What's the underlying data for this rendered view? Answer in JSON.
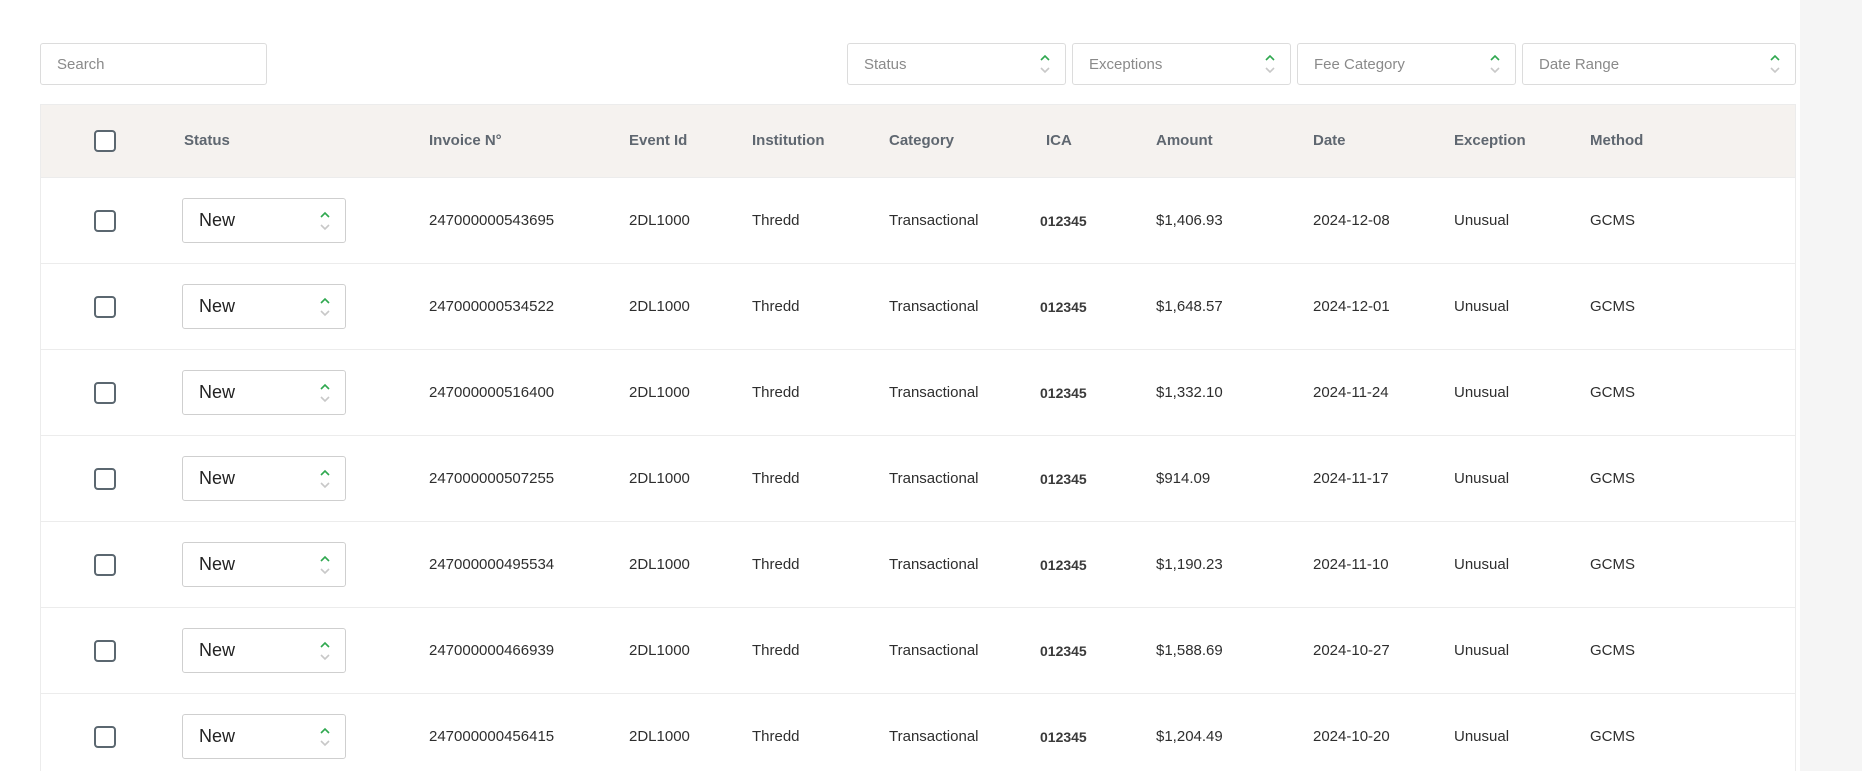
{
  "search": {
    "placeholder": "Search",
    "value": ""
  },
  "filters": [
    {
      "name": "status-filter",
      "label": "Status"
    },
    {
      "name": "exceptions-filter",
      "label": "Exceptions"
    },
    {
      "name": "fee-category-filter",
      "label": "Fee Category"
    },
    {
      "name": "date-range-filter",
      "label": "Date Range"
    }
  ],
  "table": {
    "headers": {
      "status": "Status",
      "invoice": "Invoice N°",
      "event_id": "Event Id",
      "institution": "Institution",
      "category": "Category",
      "ica": "ICA",
      "amount": "Amount",
      "date": "Date",
      "exception": "Exception",
      "method": "Method"
    },
    "rows": [
      {
        "status": "New",
        "invoice": "247000000543695",
        "event_id": "2DL1000",
        "institution": "Thredd",
        "category": "Transactional",
        "ica": "012345",
        "amount": "$1,406.93",
        "date": "2024-12-08",
        "exception": "Unusual",
        "method": "GCMS"
      },
      {
        "status": "New",
        "invoice": "247000000534522",
        "event_id": "2DL1000",
        "institution": "Thredd",
        "category": "Transactional",
        "ica": "012345",
        "amount": "$1,648.57",
        "date": "2024-12-01",
        "exception": "Unusual",
        "method": "GCMS"
      },
      {
        "status": "New",
        "invoice": "247000000516400",
        "event_id": "2DL1000",
        "institution": "Thredd",
        "category": "Transactional",
        "ica": "012345",
        "amount": "$1,332.10",
        "date": "2024-11-24",
        "exception": "Unusual",
        "method": "GCMS"
      },
      {
        "status": "New",
        "invoice": "247000000507255",
        "event_id": "2DL1000",
        "institution": "Thredd",
        "category": "Transactional",
        "ica": "012345",
        "amount": "$914.09",
        "date": "2024-11-17",
        "exception": "Unusual",
        "method": "GCMS"
      },
      {
        "status": "New",
        "invoice": "247000000495534",
        "event_id": "2DL1000",
        "institution": "Thredd",
        "category": "Transactional",
        "ica": "012345",
        "amount": "$1,190.23",
        "date": "2024-11-10",
        "exception": "Unusual",
        "method": "GCMS"
      },
      {
        "status": "New",
        "invoice": "247000000466939",
        "event_id": "2DL1000",
        "institution": "Thredd",
        "category": "Transactional",
        "ica": "012345",
        "amount": "$1,588.69",
        "date": "2024-10-27",
        "exception": "Unusual",
        "method": "GCMS"
      },
      {
        "status": "New",
        "invoice": "247000000456415",
        "event_id": "2DL1000",
        "institution": "Thredd",
        "category": "Transactional",
        "ica": "012345",
        "amount": "$1,204.49",
        "date": "2024-10-20",
        "exception": "Unusual",
        "method": "GCMS"
      }
    ]
  },
  "icons": {
    "select_chevron": "chevron-up-down-icon",
    "checkbox": "checkbox-icon"
  },
  "colors": {
    "accent": "#2fa84f",
    "chevron_muted": "#c8c8c8",
    "header_bg": "#f5f2ef",
    "checkbox_border": "#5b6770"
  }
}
